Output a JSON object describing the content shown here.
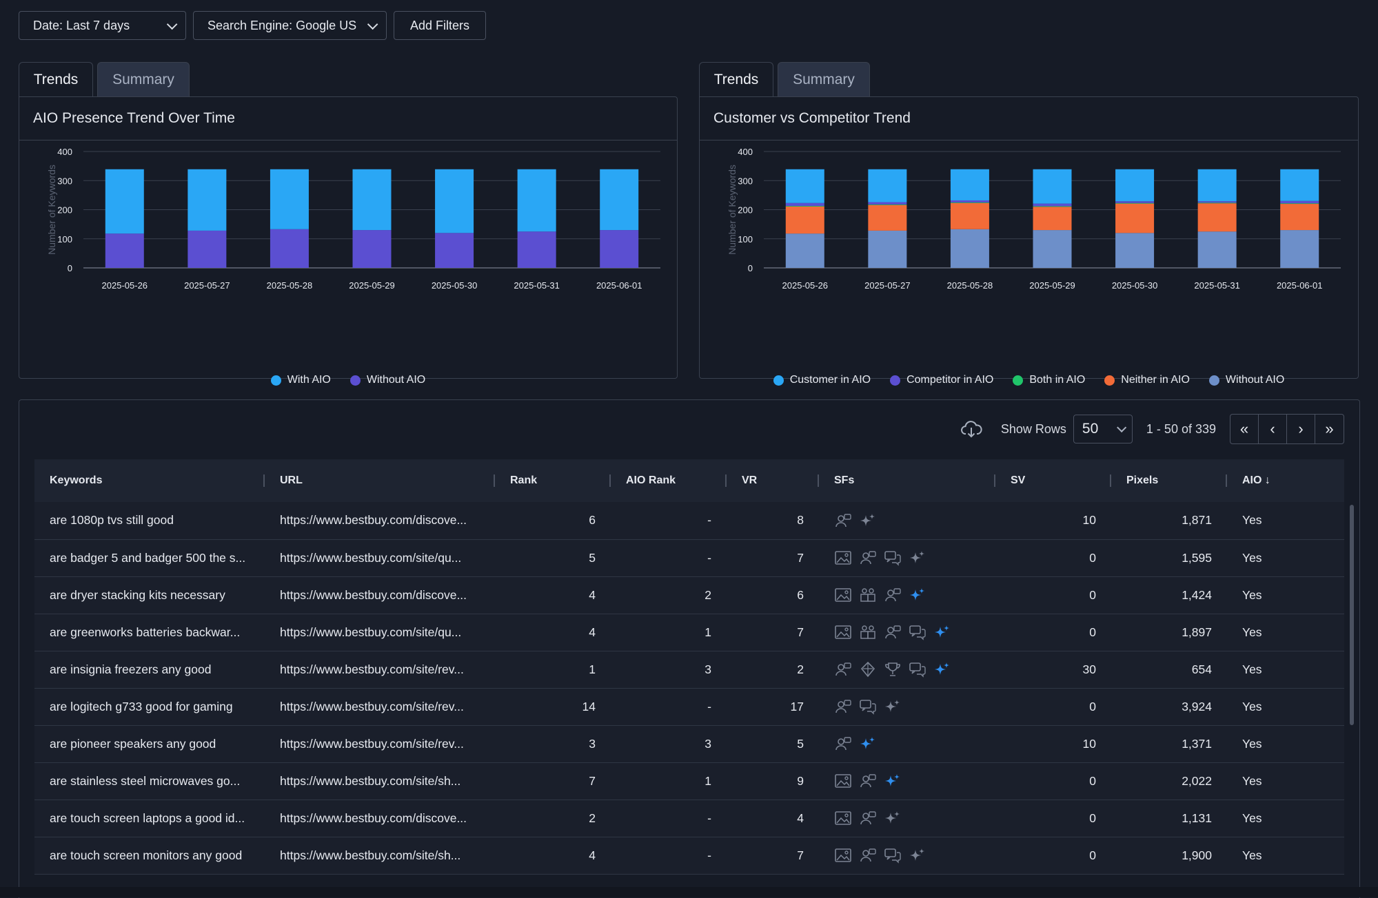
{
  "filters": {
    "date": "Date: Last 7 days",
    "engine": "Search Engine: Google US",
    "add": "Add Filters"
  },
  "left_panel": {
    "tabs": [
      "Trends",
      "Summary"
    ],
    "title": "AIO Presence Trend Over Time"
  },
  "right_panel": {
    "tabs": [
      "Trends",
      "Summary"
    ],
    "title": "Customer vs Competitor Trend"
  },
  "chart_data": [
    {
      "type": "bar",
      "stacked": true,
      "title": "AIO Presence Trend Over Time",
      "ylabel": "Number of Keywords",
      "ylim": [
        0,
        400
      ],
      "yticks": [
        0,
        100,
        200,
        300,
        400
      ],
      "categories": [
        "2025-05-26",
        "2025-05-27",
        "2025-05-28",
        "2025-05-29",
        "2025-05-30",
        "2025-05-31",
        "2025-06-01"
      ],
      "series": [
        {
          "name": "Without AIO",
          "color": "#5b4fd1",
          "values": [
            118,
            128,
            133,
            130,
            120,
            125,
            130
          ]
        },
        {
          "name": "With AIO",
          "color": "#2aa7f5",
          "values": [
            221,
            211,
            206,
            209,
            219,
            214,
            209
          ]
        }
      ],
      "legend": "bottom"
    },
    {
      "type": "bar",
      "stacked": true,
      "title": "Customer vs Competitor Trend",
      "ylabel": "Number of Keywords",
      "ylim": [
        0,
        400
      ],
      "yticks": [
        0,
        100,
        200,
        300,
        400
      ],
      "categories": [
        "2025-05-26",
        "2025-05-27",
        "2025-05-28",
        "2025-05-29",
        "2025-05-30",
        "2025-05-31",
        "2025-06-01"
      ],
      "series": [
        {
          "name": "Without AIO",
          "color": "#6d8fc9",
          "values": [
            118,
            128,
            133,
            130,
            120,
            125,
            130
          ]
        },
        {
          "name": "Neither in AIO",
          "color": "#f26b38",
          "values": [
            93,
            88,
            90,
            80,
            101,
            97,
            90
          ]
        },
        {
          "name": "Both in AIO",
          "color": "#20c56a",
          "values": [
            2,
            2,
            2,
            2,
            2,
            2,
            2
          ]
        },
        {
          "name": "Competitor in AIO",
          "color": "#5b4fd1",
          "values": [
            10,
            8,
            7,
            9,
            6,
            5,
            8
          ]
        },
        {
          "name": "Customer in AIO",
          "color": "#2aa7f5",
          "values": [
            116,
            113,
            107,
            118,
            110,
            110,
            109
          ]
        }
      ],
      "legend_order": [
        "Customer in AIO",
        "Competitor in AIO",
        "Both in AIO",
        "Neither in AIO",
        "Without AIO"
      ],
      "legend": "bottom"
    }
  ],
  "pager": {
    "show_rows_label": "Show Rows",
    "rows_value": "50",
    "range": "1 - 50 of 339"
  },
  "table": {
    "headers": [
      "Keywords",
      "URL",
      "Rank",
      "AIO Rank",
      "VR",
      "SFs",
      "SV",
      "Pixels",
      "AIO"
    ],
    "rows": [
      {
        "kw": "are 1080p tvs still good",
        "url": "https://www.bestbuy.com/discove...",
        "rank": "6",
        "aio_rank": "-",
        "vr": "8",
        "sfs": [
          "people-icon",
          "sparkle-gray-icon"
        ],
        "sv": "10",
        "pixels": "1,871",
        "aio": "Yes"
      },
      {
        "kw": "are badger 5 and badger 500 the s...",
        "url": "https://www.bestbuy.com/site/qu...",
        "rank": "5",
        "aio_rank": "-",
        "vr": "7",
        "sfs": [
          "image-icon",
          "people-icon",
          "chat-icon",
          "sparkle-gray-icon"
        ],
        "sv": "0",
        "pixels": "1,595",
        "aio": "Yes"
      },
      {
        "kw": "are dryer stacking kits necessary",
        "url": "https://www.bestbuy.com/discove...",
        "rank": "4",
        "aio_rank": "2",
        "vr": "6",
        "sfs": [
          "image-icon",
          "group-icon",
          "people-icon",
          "sparkle-blue-icon"
        ],
        "sv": "0",
        "pixels": "1,424",
        "aio": "Yes"
      },
      {
        "kw": "are greenworks batteries backwar...",
        "url": "https://www.bestbuy.com/site/qu...",
        "rank": "4",
        "aio_rank": "1",
        "vr": "7",
        "sfs": [
          "image-icon",
          "group-icon",
          "people-icon",
          "chat-icon",
          "sparkle-blue-icon"
        ],
        "sv": "0",
        "pixels": "1,897",
        "aio": "Yes"
      },
      {
        "kw": "are insignia freezers any good",
        "url": "https://www.bestbuy.com/site/rev...",
        "rank": "1",
        "aio_rank": "3",
        "vr": "2",
        "sfs": [
          "people-icon",
          "tag-icon",
          "trophy-icon",
          "chat-icon",
          "sparkle-blue-icon"
        ],
        "sv": "30",
        "pixels": "654",
        "aio": "Yes"
      },
      {
        "kw": "are logitech g733 good for gaming",
        "url": "https://www.bestbuy.com/site/rev...",
        "rank": "14",
        "aio_rank": "-",
        "vr": "17",
        "sfs": [
          "people-icon",
          "chat-icon",
          "sparkle-gray-icon"
        ],
        "sv": "0",
        "pixels": "3,924",
        "aio": "Yes"
      },
      {
        "kw": "are pioneer speakers any good",
        "url": "https://www.bestbuy.com/site/rev...",
        "rank": "3",
        "aio_rank": "3",
        "vr": "5",
        "sfs": [
          "people-icon",
          "sparkle-blue-icon"
        ],
        "sv": "10",
        "pixels": "1,371",
        "aio": "Yes"
      },
      {
        "kw": "are stainless steel microwaves go...",
        "url": "https://www.bestbuy.com/site/sh...",
        "rank": "7",
        "aio_rank": "1",
        "vr": "9",
        "sfs": [
          "image-icon",
          "people-icon",
          "sparkle-blue-icon"
        ],
        "sv": "0",
        "pixels": "2,022",
        "aio": "Yes"
      },
      {
        "kw": "are touch screen laptops a good id...",
        "url": "https://www.bestbuy.com/discove...",
        "rank": "2",
        "aio_rank": "-",
        "vr": "4",
        "sfs": [
          "image-icon",
          "people-icon",
          "sparkle-gray-icon"
        ],
        "sv": "0",
        "pixels": "1,131",
        "aio": "Yes"
      },
      {
        "kw": "are touch screen monitors any good",
        "url": "https://www.bestbuy.com/site/sh...",
        "rank": "4",
        "aio_rank": "-",
        "vr": "7",
        "sfs": [
          "image-icon",
          "people-icon",
          "chat-icon",
          "sparkle-gray-icon"
        ],
        "sv": "0",
        "pixels": "1,900",
        "aio": "Yes"
      }
    ]
  }
}
